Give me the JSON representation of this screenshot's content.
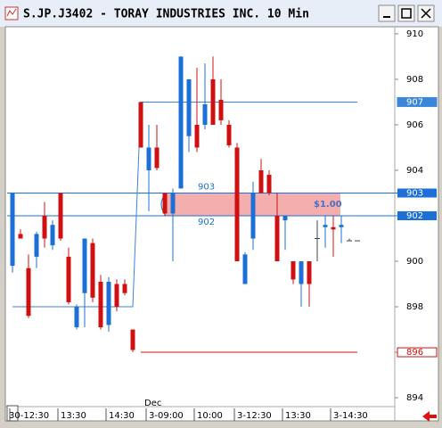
{
  "window": {
    "title": "S.JP.J3402 - TORAY INDUSTRIES INC. 10 Min"
  },
  "chart_data": {
    "type": "candlestick",
    "categories": [
      "30-12:30",
      null,
      null,
      null,
      null,
      null,
      "13:30",
      null,
      null,
      null,
      null,
      null,
      "14:30",
      null,
      null,
      null,
      null,
      "3-09:00",
      null,
      null,
      null,
      null,
      null,
      "10:00",
      null,
      null,
      null,
      null,
      "3-12:30",
      null,
      null,
      null,
      null,
      null,
      "13:30",
      null,
      null,
      null,
      null,
      null,
      "3-14:30",
      null,
      null,
      null
    ],
    "date_label": "Dec",
    "open": [
      899.8,
      901.2,
      899.7,
      900.2,
      902,
      900.7,
      903,
      900.2,
      897.1,
      898.6,
      900.8,
      899.1,
      897.2,
      899,
      899,
      897,
      907,
      904,
      905,
      903,
      902.1,
      903.2,
      905.5,
      906,
      906,
      908,
      907.1,
      906,
      905,
      899,
      901,
      904,
      903.8,
      902,
      901.8,
      900,
      899,
      900,
      901,
      901.5,
      901.5,
      901.5,
      900.9,
      900.9
    ],
    "high": [
      903,
      901.4,
      900.3,
      901.3,
      902.6,
      901.8,
      903,
      900.6,
      898.1,
      901,
      901,
      899.4,
      899.3,
      899.2,
      899.2,
      897,
      907,
      906,
      906,
      903,
      903.2,
      909,
      908,
      908.5,
      908.7,
      909,
      908,
      906.2,
      905.2,
      900.4,
      903.5,
      904.5,
      904,
      903,
      902,
      900,
      900,
      900,
      901.8,
      902,
      902,
      902,
      901,
      900.9
    ],
    "low": [
      899.5,
      901,
      897.5,
      899.7,
      900.6,
      900.5,
      900.9,
      898.1,
      897,
      897.1,
      898.2,
      897,
      896.9,
      897.8,
      898.5,
      896,
      905,
      902.2,
      904,
      902,
      900,
      903.2,
      904.8,
      904.8,
      905.8,
      906,
      906,
      905,
      900,
      899,
      900.5,
      903,
      902.9,
      900,
      900.5,
      899,
      898,
      898,
      900,
      900.6,
      900.2,
      900.8,
      900.9,
      900.9
    ],
    "close": [
      903,
      901,
      897.6,
      901.2,
      901,
      901.6,
      901,
      898.2,
      898,
      901,
      898.4,
      897.1,
      899.1,
      898,
      898.6,
      896.1,
      905,
      905,
      904.1,
      902.1,
      903,
      909,
      908,
      905,
      906.9,
      906,
      906.2,
      905.1,
      900,
      900.3,
      903,
      903,
      903,
      900,
      902,
      899.2,
      900,
      899,
      901,
      901.6,
      901.4,
      901.6,
      900.9,
      900.9
    ],
    "up_color": "#1c6fd6",
    "down_color": "#d01010",
    "flat_color": "#444444",
    "lines": [
      {
        "color": "#3a86d8",
        "values": [
          898,
          898,
          898,
          898,
          898,
          898,
          898,
          898,
          898,
          898,
          898,
          898,
          898,
          898,
          898,
          898,
          907,
          907,
          907,
          907,
          907,
          907,
          907,
          907,
          907,
          907,
          907,
          907,
          907,
          907,
          907,
          907,
          907,
          907,
          907,
          907,
          907,
          907,
          907,
          907,
          907,
          907,
          907,
          907
        ]
      },
      {
        "color": "#d01010",
        "values": [
          null,
          null,
          null,
          null,
          null,
          null,
          null,
          null,
          null,
          null,
          null,
          null,
          null,
          null,
          null,
          null,
          896,
          896,
          896,
          896,
          896,
          896,
          896,
          896,
          896,
          896,
          896,
          896,
          896,
          896,
          896,
          896,
          896,
          896,
          896,
          896,
          896,
          896,
          896,
          896,
          896,
          896,
          896,
          896
        ]
      }
    ],
    "levels": [
      903,
      902
    ],
    "level_color": "#1c6fd6",
    "annotation": "$1.00",
    "ylim": [
      893.65,
      910.31
    ],
    "yticks": [
      894,
      896,
      898,
      900,
      902,
      904,
      906,
      908,
      910
    ]
  }
}
